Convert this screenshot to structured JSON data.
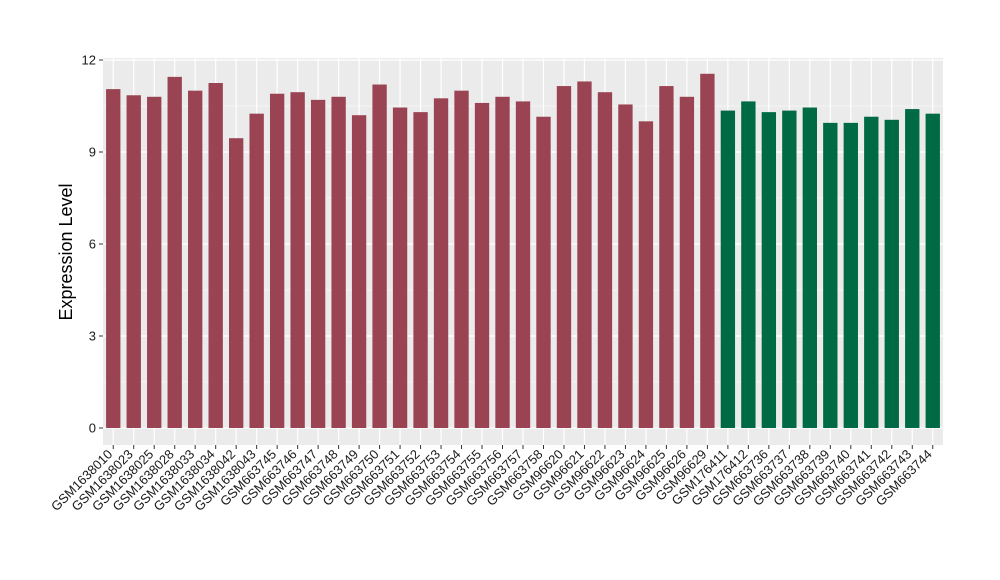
{
  "chart_data": {
    "type": "bar",
    "title": "",
    "xlabel": "",
    "ylabel": "Expression Level",
    "ylim": [
      0,
      12
    ],
    "yticks": [
      0,
      3,
      6,
      9,
      12
    ],
    "grid": true,
    "legend": "none",
    "colors": {
      "group_a": "#9A4352",
      "group_b": "#006A44",
      "panel_bg": "#EBEBEB",
      "grid": "#FFFFFF"
    },
    "categories": [
      "GSM1638010",
      "GSM1638023",
      "GSM1638025",
      "GSM1638028",
      "GSM1638033",
      "GSM1638034",
      "GSM1638042",
      "GSM1638043",
      "GSM663745",
      "GSM663746",
      "GSM663747",
      "GSM663748",
      "GSM663749",
      "GSM663750",
      "GSM663751",
      "GSM663752",
      "GSM663753",
      "GSM663754",
      "GSM663755",
      "GSM663756",
      "GSM663757",
      "GSM663758",
      "GSM96620",
      "GSM96621",
      "GSM96622",
      "GSM96623",
      "GSM96624",
      "GSM96625",
      "GSM96626",
      "GSM96629",
      "GSM176411",
      "GSM176412",
      "GSM663736",
      "GSM663737",
      "GSM663738",
      "GSM663739",
      "GSM663740",
      "GSM663741",
      "GSM663742",
      "GSM663743",
      "GSM663744"
    ],
    "values": [
      11.05,
      10.85,
      10.8,
      11.45,
      11.0,
      11.25,
      9.45,
      10.25,
      10.9,
      10.95,
      10.7,
      10.8,
      10.2,
      11.2,
      10.45,
      10.3,
      10.75,
      11.0,
      10.6,
      10.8,
      10.65,
      10.15,
      11.15,
      11.3,
      10.95,
      10.55,
      10.0,
      11.15,
      10.8,
      11.55,
      10.35,
      10.65,
      10.3,
      10.35,
      10.45,
      9.95,
      9.95,
      10.15,
      10.05,
      10.4,
      10.25
    ],
    "groups": [
      "a",
      "a",
      "a",
      "a",
      "a",
      "a",
      "a",
      "a",
      "a",
      "a",
      "a",
      "a",
      "a",
      "a",
      "a",
      "a",
      "a",
      "a",
      "a",
      "a",
      "a",
      "a",
      "a",
      "a",
      "a",
      "a",
      "a",
      "a",
      "a",
      "a",
      "b",
      "b",
      "b",
      "b",
      "b",
      "b",
      "b",
      "b",
      "b",
      "b",
      "b"
    ]
  }
}
